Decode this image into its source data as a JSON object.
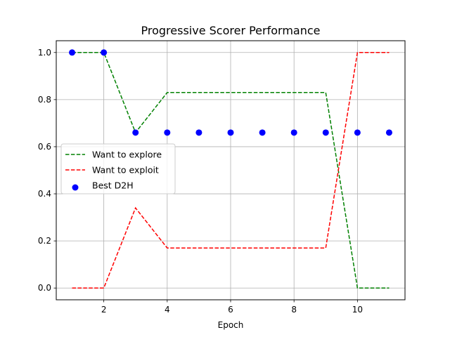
{
  "chart_data": {
    "type": "line",
    "title": "Progressive Scorer Performance",
    "xlabel": "Epoch",
    "ylabel": "",
    "xlim": [
      0.5,
      11.5
    ],
    "ylim": [
      -0.05,
      1.05
    ],
    "xticks": [
      2,
      4,
      6,
      8,
      10
    ],
    "yticks": [
      0.0,
      0.2,
      0.4,
      0.6,
      0.8,
      1.0
    ],
    "ytick_labels": [
      "0.0",
      "0.2",
      "0.4",
      "0.6",
      "0.8",
      "1.0"
    ],
    "grid": true,
    "legend_position": "center-left",
    "x": [
      1,
      2,
      3,
      4,
      5,
      6,
      7,
      8,
      9,
      10,
      11
    ],
    "series": [
      {
        "name": "Want to explore",
        "style": "dashed-line",
        "color": "#008000",
        "values": [
          1.0,
          1.0,
          0.66,
          0.83,
          0.83,
          0.83,
          0.83,
          0.83,
          0.83,
          0.0,
          0.0
        ]
      },
      {
        "name": "Want to exploit",
        "style": "dashed-line",
        "color": "#ff0000",
        "values": [
          0.0,
          0.0,
          0.34,
          0.17,
          0.17,
          0.17,
          0.17,
          0.17,
          0.17,
          1.0,
          1.0
        ]
      },
      {
        "name": "Best D2H",
        "style": "scatter",
        "color": "#0000ff",
        "values": [
          1.0,
          1.0,
          0.66,
          0.66,
          0.66,
          0.66,
          0.66,
          0.66,
          0.66,
          0.66,
          0.66
        ]
      }
    ]
  }
}
